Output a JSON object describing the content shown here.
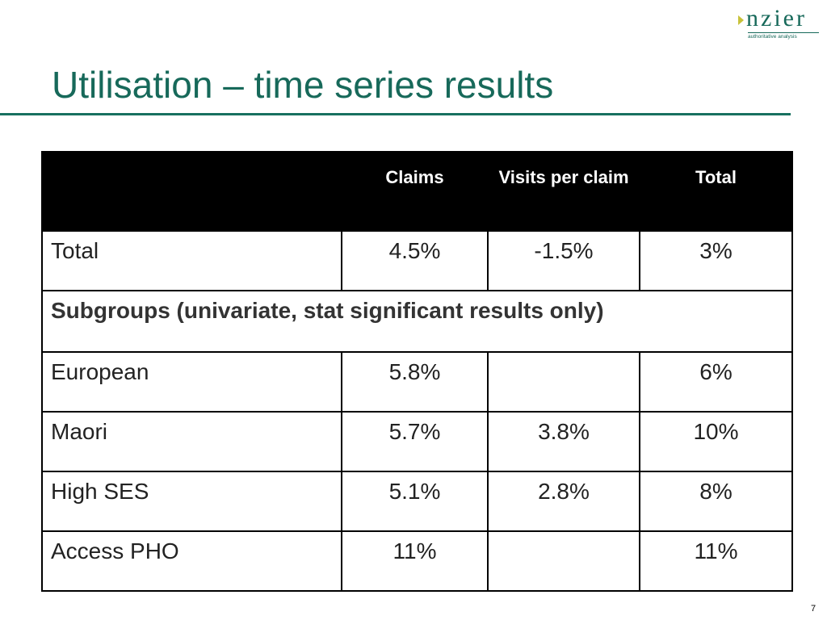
{
  "logo": {
    "name": "nzier",
    "tagline": "authoritative analysis"
  },
  "title": "Utilisation – time series results",
  "table": {
    "columns": [
      "Claims",
      "Visits per claim",
      "Total"
    ],
    "rows": [
      [
        "Total",
        "4.5%",
        "-1.5%",
        "3%"
      ]
    ],
    "section": "Subgroups (univariate, stat significant results only)",
    "section_rows": [
      [
        "European",
        "5.8%",
        null,
        "6%"
      ],
      [
        "Maori",
        "5.7%",
        "3.8%",
        "10%"
      ],
      [
        "High SES",
        "5.1%",
        "2.8%",
        "8%"
      ],
      [
        "Access PHO",
        "11%",
        null,
        "11%"
      ]
    ]
  },
  "page_number": "7"
}
